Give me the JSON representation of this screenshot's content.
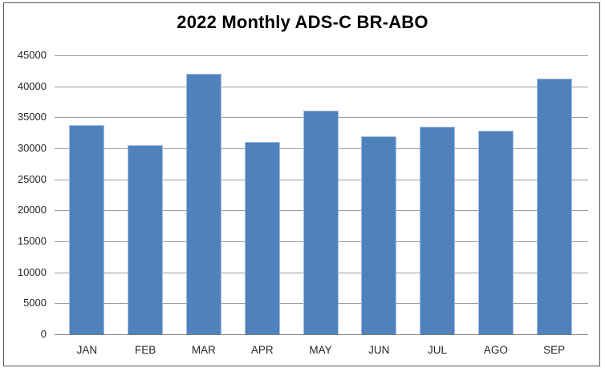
{
  "chart_data": {
    "type": "bar",
    "title": "2022 Monthly ADS-C BR-ABO",
    "categories": [
      "JAN",
      "FEB",
      "MAR",
      "APR",
      "MAY",
      "JUN",
      "JUL",
      "AGO",
      "SEP"
    ],
    "values": [
      33700,
      30500,
      42000,
      31000,
      36100,
      31900,
      33500,
      32900,
      41300
    ],
    "xlabel": "",
    "ylabel": "",
    "ylim": [
      0,
      45000
    ],
    "yticks": [
      0,
      5000,
      10000,
      15000,
      20000,
      25000,
      30000,
      35000,
      40000,
      45000
    ],
    "grid": "horizontal",
    "legend": "none",
    "colors": {
      "bar_fill": "#4F81BD",
      "bar_border": "#A7BFDE",
      "gridline": "#9c9c9c",
      "axis_line": "#7f7f7f",
      "chart_border": "#555555",
      "text": "#262626",
      "title_text": "#000000",
      "background": "#ffffff"
    }
  }
}
